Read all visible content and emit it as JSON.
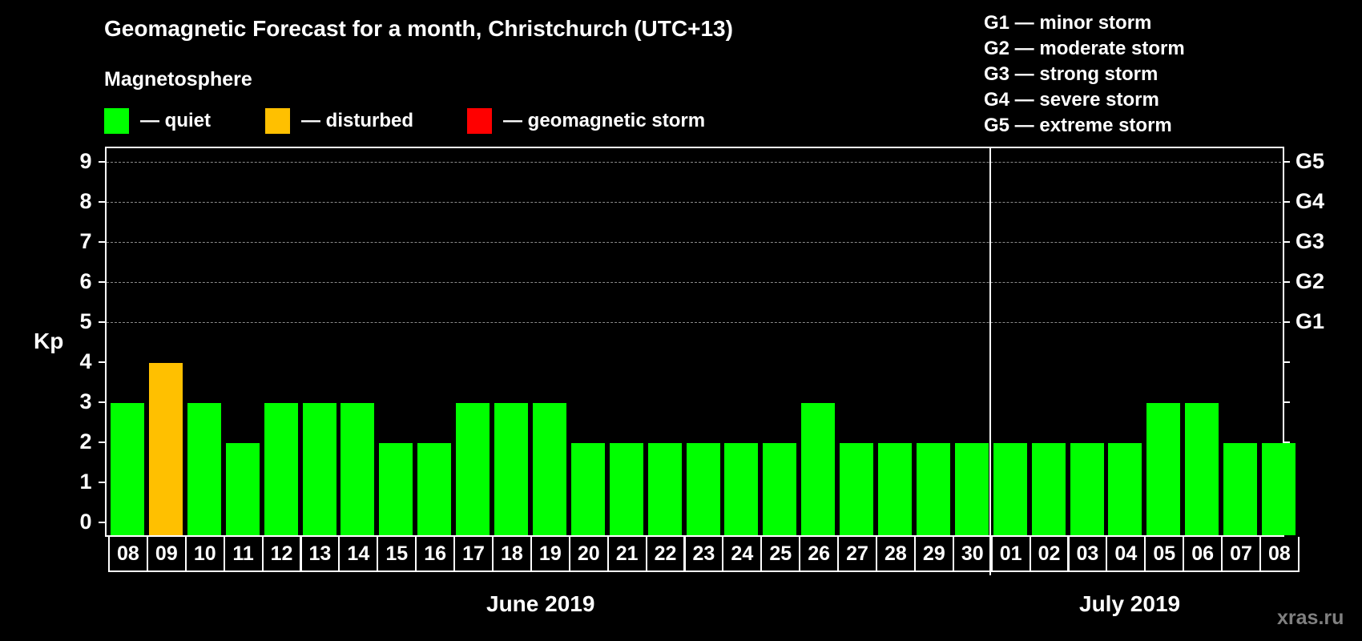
{
  "header": {
    "title": "Geomagnetic Forecast for a month, Christchurch (UTC+13)",
    "subtitle": "Magnetosphere"
  },
  "legend": [
    {
      "label": "— quiet",
      "color": "#00ff00"
    },
    {
      "label": "— disturbed",
      "color": "#ffc000"
    },
    {
      "label": "— geomagnetic storm",
      "color": "#ff0000"
    }
  ],
  "storm_scale": [
    "G1 — minor storm",
    "G2 — moderate storm",
    "G3 — strong storm",
    "G4 — severe storm",
    "G5 — extreme storm"
  ],
  "axes": {
    "y_label": "Kp",
    "y_ticks": [
      "0",
      "1",
      "2",
      "3",
      "4",
      "5",
      "6",
      "7",
      "8",
      "9"
    ],
    "right_ticks": [
      {
        "kp": 5,
        "label": "G1"
      },
      {
        "kp": 6,
        "label": "G2"
      },
      {
        "kp": 7,
        "label": "G3"
      },
      {
        "kp": 8,
        "label": "G4"
      },
      {
        "kp": 9,
        "label": "G5"
      }
    ]
  },
  "months": [
    {
      "label": "June 2019"
    },
    {
      "label": "July 2019"
    }
  ],
  "watermark": "xras.ru",
  "colors": {
    "quiet": "#00ff00",
    "disturbed": "#ffc000",
    "storm": "#ff0000"
  },
  "chart_data": {
    "type": "bar",
    "title": "Geomagnetic Forecast for a month, Christchurch (UTC+13)",
    "subtitle": "Magnetosphere",
    "xlabel": "June 2019 / July 2019",
    "ylabel": "Kp",
    "ylim": [
      0,
      9
    ],
    "grid": "dashed horizontal at Kp 5-9",
    "legend_position": "top",
    "categories": [
      "08",
      "09",
      "10",
      "11",
      "12",
      "13",
      "14",
      "15",
      "16",
      "17",
      "18",
      "19",
      "20",
      "21",
      "22",
      "23",
      "24",
      "25",
      "26",
      "27",
      "28",
      "29",
      "30",
      "01",
      "02",
      "03",
      "04",
      "05",
      "06",
      "07",
      "08"
    ],
    "values": [
      3,
      4,
      3,
      2,
      3,
      3,
      3,
      2,
      2,
      3,
      3,
      3,
      2,
      2,
      2,
      2,
      2,
      2,
      3,
      2,
      2,
      2,
      2,
      2,
      2,
      2,
      2,
      3,
      3,
      2,
      2
    ],
    "status": [
      "quiet",
      "disturbed",
      "quiet",
      "quiet",
      "quiet",
      "quiet",
      "quiet",
      "quiet",
      "quiet",
      "quiet",
      "quiet",
      "quiet",
      "quiet",
      "quiet",
      "quiet",
      "quiet",
      "quiet",
      "quiet",
      "quiet",
      "quiet",
      "quiet",
      "quiet",
      "quiet",
      "quiet",
      "quiet",
      "quiet",
      "quiet",
      "quiet",
      "quiet",
      "quiet",
      "quiet"
    ],
    "month_split_index": 23,
    "right_axis": {
      "5": "G1",
      "6": "G2",
      "7": "G3",
      "8": "G4",
      "9": "G5"
    }
  }
}
